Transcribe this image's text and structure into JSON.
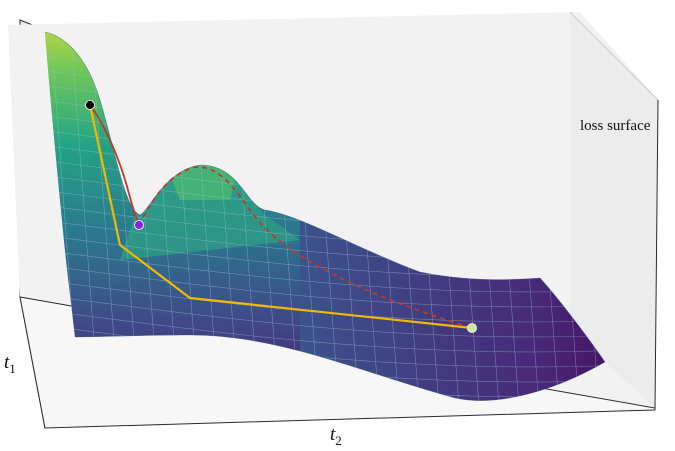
{
  "labels": {
    "surface": "loss surface",
    "t1_var": "t",
    "t1_sub": "1",
    "t2_var": "t",
    "t2_sub": "2"
  },
  "colors": {
    "pane_left": "#e9e9e9",
    "pane_back": "#f3f3f3",
    "pane_floor": "#f8f8f8",
    "pane_edge": "#222222",
    "grid_line": "#7fa0b4",
    "path_red": "#c0392b",
    "path_dashed": "#c0392b",
    "path_yellow": "#f5b800",
    "start_point": "#000000",
    "mid_point": "#8e1df2",
    "end_point": "#c8e6a0",
    "colormap": "viridis"
  },
  "markers": [
    {
      "name": "start-point",
      "role": "start"
    },
    {
      "name": "intermediate-point",
      "role": "intermediate"
    },
    {
      "name": "end-point",
      "role": "end"
    }
  ]
}
